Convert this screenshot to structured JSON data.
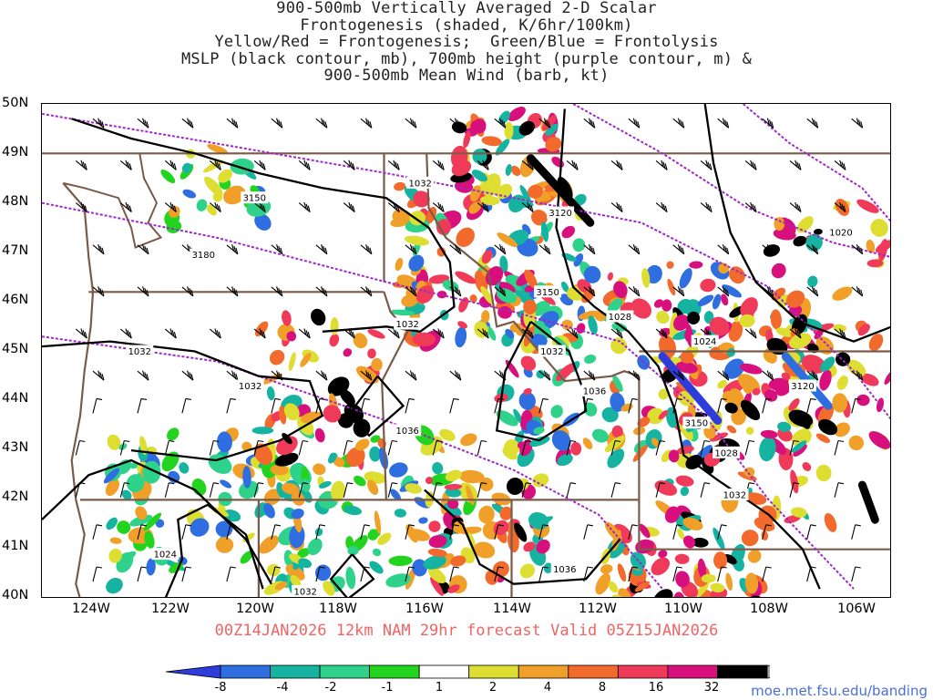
{
  "title": {
    "lines": [
      "900-500mb Vertically Averaged 2-D Scalar",
      "Frontogenesis (shaded, K/6hr/100km)",
      "Yellow/Red = Frontogenesis;  Green/Blue = Frontolysis",
      "MSLP (black contour, mb), 700mb height (purple contour, m) &",
      "900-500mb Mean Wind (barb, kt)"
    ]
  },
  "map": {
    "lat_labels": [
      "50N",
      "49N",
      "48N",
      "47N",
      "46N",
      "45N",
      "44N",
      "43N",
      "42N",
      "41N",
      "40N"
    ],
    "lon_labels": [
      "124W",
      "122W",
      "120W",
      "118W",
      "116W",
      "114W",
      "112W",
      "110W",
      "108W",
      "106W"
    ],
    "extent": {
      "lon_min": -125.1,
      "lon_max": -105.1,
      "lat_min": 40,
      "lat_max": 50
    },
    "height_contour_labels": [
      {
        "text": "3150",
        "lon": -120.1,
        "lat": 48.1
      },
      {
        "text": "3180",
        "lon": -121.3,
        "lat": 46.95
      },
      {
        "text": "3120",
        "lon": -112.9,
        "lat": 47.8
      },
      {
        "text": "3150",
        "lon": -113.2,
        "lat": 46.2
      },
      {
        "text": "3120",
        "lon": -107.2,
        "lat": 44.3
      },
      {
        "text": "3150",
        "lon": -109.7,
        "lat": 43.55
      },
      {
        "text": "1020",
        "lon": -106.3,
        "lat": 47.4
      }
    ],
    "pressure_contour_labels": [
      {
        "text": "1032",
        "lon": -116.2,
        "lat": 48.4
      },
      {
        "text": "1032",
        "lon": -122.8,
        "lat": 45.0
      },
      {
        "text": "1032",
        "lon": -120.2,
        "lat": 44.3
      },
      {
        "text": "1032",
        "lon": -116.5,
        "lat": 45.55
      },
      {
        "text": "1036",
        "lon": -116.5,
        "lat": 43.4
      },
      {
        "text": "1028",
        "lon": -111.5,
        "lat": 45.7
      },
      {
        "text": "1032",
        "lon": -113.1,
        "lat": 45.0
      },
      {
        "text": "1036",
        "lon": -112.1,
        "lat": 44.2
      },
      {
        "text": "1024",
        "lon": -109.5,
        "lat": 45.2
      },
      {
        "text": "1028",
        "lon": -109.0,
        "lat": 42.95
      },
      {
        "text": "1032",
        "lon": -108.8,
        "lat": 42.1
      },
      {
        "text": "1024",
        "lon": -122.2,
        "lat": 40.9
      },
      {
        "text": "1032",
        "lon": -118.9,
        "lat": 40.15
      },
      {
        "text": "1036",
        "lon": -112.8,
        "lat": 40.6
      }
    ]
  },
  "forecast": {
    "text": "00Z14JAN2026 12km NAM 29hr forecast Valid 05Z15JAN2026"
  },
  "colorbar": {
    "labels": [
      "-8",
      "-4",
      "-2",
      "-1",
      "1",
      "2",
      "4",
      "8",
      "16",
      "32"
    ],
    "colors": [
      "#2f3cdc",
      "#2e6ee0",
      "#16b4a0",
      "#2ed28a",
      "#22d41e",
      "#ffffff",
      "#dede32",
      "#f0a028",
      "#f26a2c",
      "#f03a5a",
      "#d8107e",
      "#000000",
      "#a8a8a8"
    ]
  },
  "credit": "moe.met.fsu.edu/banding"
}
